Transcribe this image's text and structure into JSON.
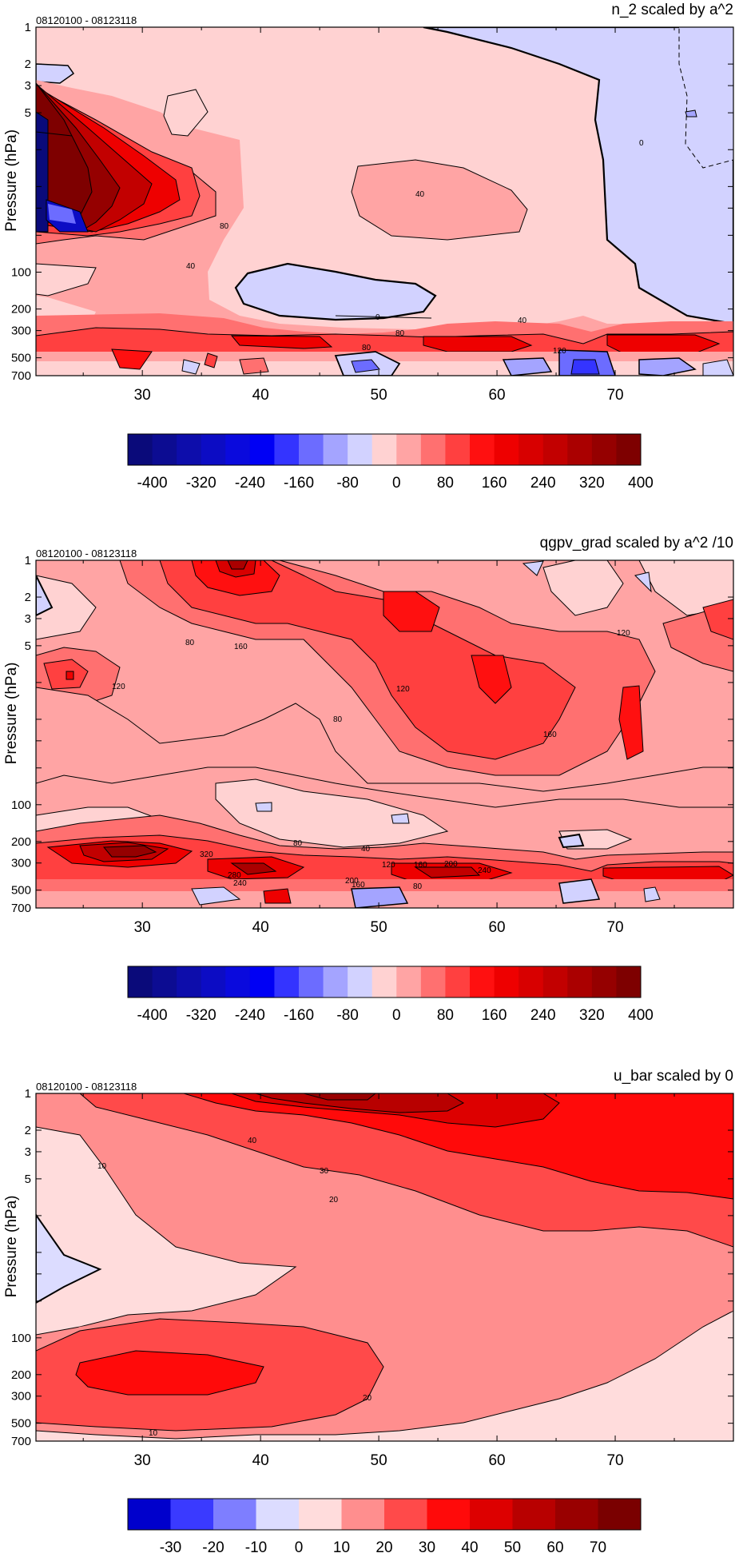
{
  "colors": {
    "scale_400": [
      "#0a0a7a",
      "#0c0c92",
      "#0d0dab",
      "#0c0cc4",
      "#0a0add",
      "#0000f5",
      "#3434ff",
      "#6c6cff",
      "#a4a4ff",
      "#d2d2ff",
      "#ffd2d2",
      "#ffa4a4",
      "#ff7070",
      "#ff4040",
      "#ff1010",
      "#ee0000",
      "#d80000",
      "#c20000",
      "#aa0000",
      "#950000",
      "#7e0000"
    ],
    "scale_70": [
      "#0000cc",
      "#3a3aff",
      "#7e7eff",
      "#dcdcff",
      "#ffdcdc",
      "#ff8e8e",
      "#ff4a4a",
      "#ff0a0a",
      "#dd0000",
      "#b80000",
      "#990000",
      "#7a0000"
    ]
  },
  "chart_data": [
    {
      "type": "heatmap",
      "title": "n_2 scaled by a^2",
      "subtitle": "08120100 - 08123118",
      "ylabel": "Pressure (hPa)",
      "xlabel": "",
      "xticks": [
        30,
        40,
        50,
        60,
        70
      ],
      "xlim": [
        21,
        80
      ],
      "ylim": [
        700,
        1
      ],
      "ylog": true,
      "yticks": [
        1,
        2,
        3,
        5,
        10,
        20,
        30,
        50,
        100,
        200,
        300,
        500,
        700
      ],
      "ytick_labels": [
        "1",
        "2",
        "3",
        "5",
        "",
        "",
        "",
        "",
        "100",
        "200",
        "300",
        "500",
        "700"
      ],
      "colorbar_labels": [
        "-400",
        "-320",
        "-240",
        "-160",
        "-80",
        "0",
        "80",
        "160",
        "240",
        "320",
        "400"
      ],
      "contour_labels": [
        "0",
        "40",
        "80",
        "120",
        "40",
        "80",
        "40",
        "0"
      ]
    },
    {
      "type": "heatmap",
      "title": "qgpv_grad scaled by a^2 /10",
      "subtitle": "08120100 - 08123118",
      "ylabel": "Pressure (hPa)",
      "xlabel": "",
      "xticks": [
        30,
        40,
        50,
        60,
        70
      ],
      "xlim": [
        21,
        80
      ],
      "ylim": [
        700,
        1
      ],
      "ylog": true,
      "yticks": [
        1,
        2,
        3,
        5,
        10,
        20,
        30,
        50,
        100,
        200,
        300,
        500,
        700
      ],
      "ytick_labels": [
        "1",
        "2",
        "3",
        "5",
        "",
        "",
        "",
        "",
        "100",
        "200",
        "300",
        "500",
        "700"
      ],
      "colorbar_labels": [
        "-400",
        "-320",
        "-240",
        "-160",
        "-80",
        "0",
        "80",
        "160",
        "240",
        "320",
        "400"
      ],
      "contour_labels": [
        "80",
        "160",
        "120",
        "80",
        "120",
        "160",
        "120",
        "80",
        "40",
        "320",
        "280",
        "240",
        "200",
        "160",
        "120",
        "160",
        "200",
        "240",
        "80"
      ]
    },
    {
      "type": "heatmap",
      "title": "u_bar scaled by 0",
      "subtitle": "08120100 - 08123118",
      "ylabel": "Pressure (hPa)",
      "xlabel": "",
      "xticks": [
        30,
        40,
        50,
        60,
        70
      ],
      "xlim": [
        21,
        80
      ],
      "ylim": [
        700,
        1
      ],
      "ylog": true,
      "yticks": [
        1,
        2,
        3,
        5,
        10,
        20,
        30,
        50,
        100,
        200,
        300,
        500,
        700
      ],
      "ytick_labels": [
        "1",
        "2",
        "3",
        "5",
        "",
        "",
        "",
        "",
        "100",
        "200",
        "300",
        "500",
        "700"
      ],
      "colorbar_labels": [
        "-30",
        "-20",
        "-10",
        "0",
        "10",
        "20",
        "30",
        "40",
        "50",
        "60",
        "70"
      ],
      "contour_labels": [
        "40",
        "30",
        "20",
        "10",
        "20",
        "10"
      ]
    }
  ]
}
